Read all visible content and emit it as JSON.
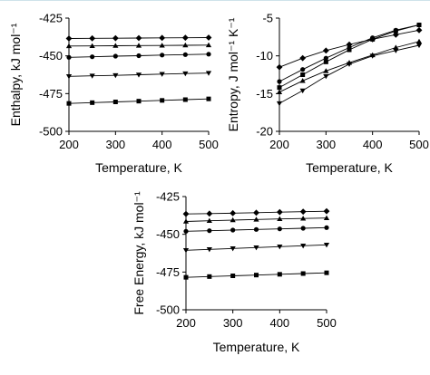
{
  "chart_data": [
    {
      "type": "line",
      "title": "",
      "xlabel": "Temperature, K",
      "ylabel": "Enthalpy, kJ mol⁻¹",
      "xlim": [
        200,
        500
      ],
      "ylim": [
        -500,
        -425
      ],
      "xticks": [
        200,
        300,
        400,
        500
      ],
      "yticks": [
        -425,
        -450,
        -475,
        -500
      ],
      "grid": false,
      "x": [
        200,
        250,
        300,
        350,
        400,
        450,
        500
      ],
      "series": [
        {
          "marker": "diamond",
          "values": [
            -438.5,
            -438.4,
            -438.3,
            -438.2,
            -438.1,
            -438.0,
            -437.9
          ]
        },
        {
          "marker": "triangle-up",
          "values": [
            -443.5,
            -443.4,
            -443.3,
            -443.2,
            -443.1,
            -443.0,
            -442.9
          ]
        },
        {
          "marker": "circle",
          "values": [
            -451.0,
            -450.6,
            -450.2,
            -449.9,
            -449.5,
            -449.2,
            -448.9
          ]
        },
        {
          "marker": "triangle-down",
          "values": [
            -463.6,
            -463.2,
            -462.9,
            -462.5,
            -462.1,
            -461.7,
            -461.4
          ]
        },
        {
          "marker": "square",
          "values": [
            -481.5,
            -481.0,
            -480.5,
            -480.0,
            -479.5,
            -479.0,
            -478.5
          ]
        }
      ]
    },
    {
      "type": "line",
      "title": "",
      "xlabel": "Temperature, K",
      "ylabel": "Entropy, J mol⁻¹ K⁻¹",
      "xlim": [
        200,
        500
      ],
      "ylim": [
        -20,
        -5
      ],
      "xticks": [
        200,
        300,
        400,
        500
      ],
      "yticks": [
        -5,
        -10,
        -15,
        -20
      ],
      "grid": false,
      "x": [
        200,
        250,
        300,
        350,
        400,
        450,
        500
      ],
      "series": [
        {
          "marker": "diamond",
          "values": [
            -11.5,
            -10.3,
            -9.3,
            -8.5,
            -7.8,
            -7.2,
            -6.6
          ]
        },
        {
          "marker": "circle",
          "values": [
            -13.4,
            -11.8,
            -10.3,
            -8.9,
            -7.6,
            -6.6,
            -5.9
          ]
        },
        {
          "marker": "square",
          "values": [
            -14.2,
            -12.5,
            -10.8,
            -9.2,
            -7.8,
            -6.7,
            -5.9
          ]
        },
        {
          "marker": "triangle-up",
          "values": [
            -14.8,
            -13.3,
            -12.0,
            -10.9,
            -9.9,
            -8.9,
            -8.1
          ]
        },
        {
          "marker": "triangle-down",
          "values": [
            -16.3,
            -14.6,
            -12.7,
            -11.1,
            -10.0,
            -9.3,
            -8.6
          ]
        }
      ]
    },
    {
      "type": "line",
      "title": "",
      "xlabel": "Temperature, K",
      "ylabel": "Free Energy, kJ mol⁻¹",
      "xlim": [
        200,
        500
      ],
      "ylim": [
        -500,
        -425
      ],
      "xticks": [
        200,
        300,
        400,
        500
      ],
      "yticks": [
        -425,
        -450,
        -475,
        -500
      ],
      "grid": false,
      "x": [
        200,
        250,
        300,
        350,
        400,
        450,
        500
      ],
      "series": [
        {
          "marker": "diamond",
          "values": [
            -436.5,
            -436.3,
            -436.0,
            -435.7,
            -435.3,
            -435.0,
            -434.7
          ]
        },
        {
          "marker": "triangle-up",
          "values": [
            -441.5,
            -441.0,
            -440.6,
            -440.2,
            -439.8,
            -439.5,
            -439.2
          ]
        },
        {
          "marker": "circle",
          "values": [
            -448.0,
            -447.6,
            -447.2,
            -446.8,
            -446.4,
            -446.0,
            -445.6
          ]
        },
        {
          "marker": "triangle-down",
          "values": [
            -460.6,
            -460.0,
            -459.4,
            -458.8,
            -458.2,
            -457.6,
            -457.0
          ]
        },
        {
          "marker": "square",
          "values": [
            -478.5,
            -478.0,
            -477.5,
            -477.0,
            -476.5,
            -476.0,
            -475.5
          ]
        }
      ]
    }
  ]
}
